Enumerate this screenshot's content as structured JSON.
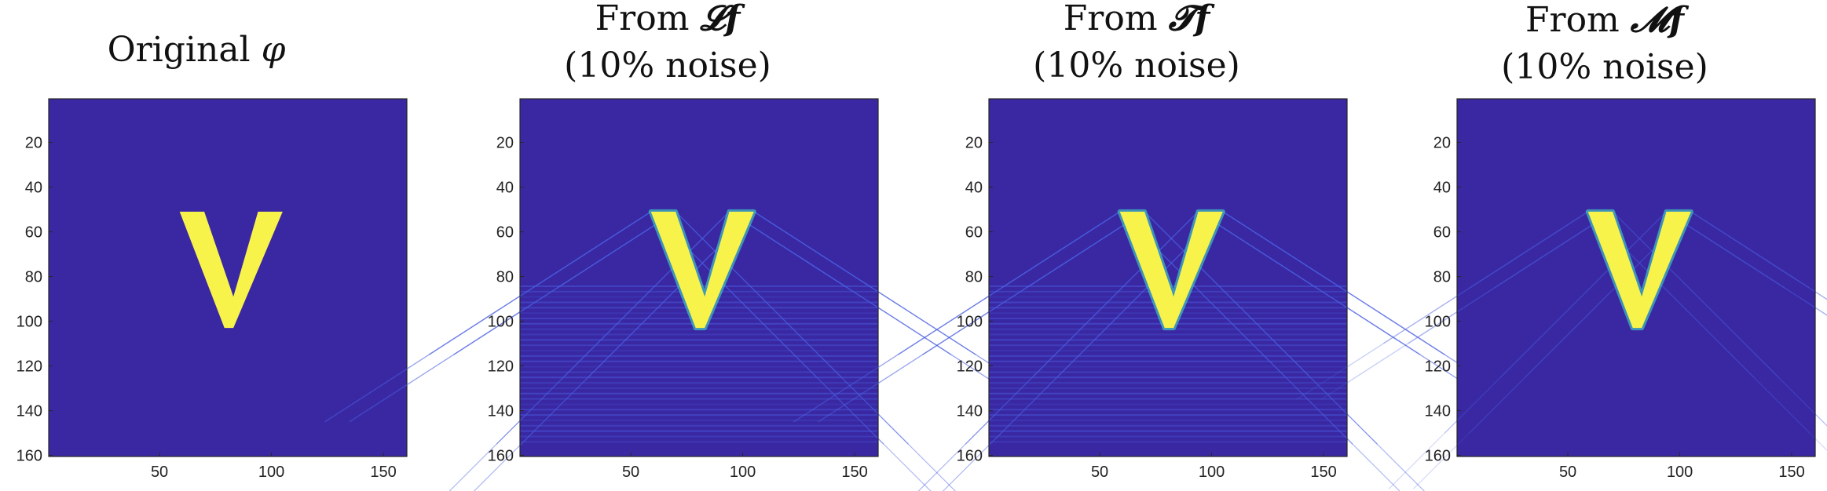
{
  "colors": {
    "background": "#3a28a3",
    "shape": "#f8f34a",
    "shape_edge": "#40c3c0",
    "artifact": "#4a5fe0",
    "axis": "#262626"
  },
  "chart_data": [
    {
      "type": "heatmap",
      "title_prefix": "Original",
      "title_symbol": "φ",
      "title_line2": "",
      "xlim": [
        0.5,
        160.5
      ],
      "ylim": [
        0.5,
        160.5
      ],
      "xticks": [
        50,
        100,
        150
      ],
      "yticks": [
        20,
        40,
        60,
        80,
        100,
        120,
        140,
        160
      ],
      "shape": "V",
      "v_shape": {
        "top_y": 51,
        "bottom_y": 103,
        "left_arm_x": [
          59,
          70
        ],
        "right_arm_x": [
          94,
          105
        ],
        "bottom_x": 81
      },
      "artifacts": "none"
    },
    {
      "type": "heatmap",
      "title_prefix": "From",
      "title_symbol": "𝓛𝒇",
      "title_line2": "(10% noise)",
      "xlim": [
        0.5,
        160.5
      ],
      "ylim": [
        0.5,
        160.5
      ],
      "xticks": [
        50,
        100,
        150
      ],
      "yticks": [
        20,
        40,
        60,
        80,
        100,
        120,
        140,
        160
      ],
      "shape": "V",
      "v_shape": {
        "top_y": 51,
        "bottom_y": 103,
        "left_arm_x": [
          59,
          70
        ],
        "right_arm_x": [
          94,
          105
        ],
        "bottom_x": 81
      },
      "artifacts": "strong"
    },
    {
      "type": "heatmap",
      "title_prefix": "From",
      "title_symbol": "𝓣𝒇",
      "title_line2": "(10% noise)",
      "xlim": [
        0.5,
        160.5
      ],
      "ylim": [
        0.5,
        160.5
      ],
      "xticks": [
        50,
        100,
        150
      ],
      "yticks": [
        20,
        40,
        60,
        80,
        100,
        120,
        140,
        160
      ],
      "shape": "V",
      "v_shape": {
        "top_y": 51,
        "bottom_y": 103,
        "left_arm_x": [
          59,
          70
        ],
        "right_arm_x": [
          94,
          105
        ],
        "bottom_x": 81
      },
      "artifacts": "strong"
    },
    {
      "type": "heatmap",
      "title_prefix": "From",
      "title_symbol": "𝓜𝒇",
      "title_line2": "(10% noise)",
      "xlim": [
        0.5,
        160.5
      ],
      "ylim": [
        0.5,
        160.5
      ],
      "xticks": [
        50,
        100,
        150
      ],
      "yticks": [
        20,
        40,
        60,
        80,
        100,
        120,
        140,
        160
      ],
      "shape": "V",
      "v_shape": {
        "top_y": 51,
        "bottom_y": 103,
        "left_arm_x": [
          59,
          70
        ],
        "right_arm_x": [
          94,
          105
        ],
        "bottom_x": 81
      },
      "artifacts": "weak"
    }
  ]
}
